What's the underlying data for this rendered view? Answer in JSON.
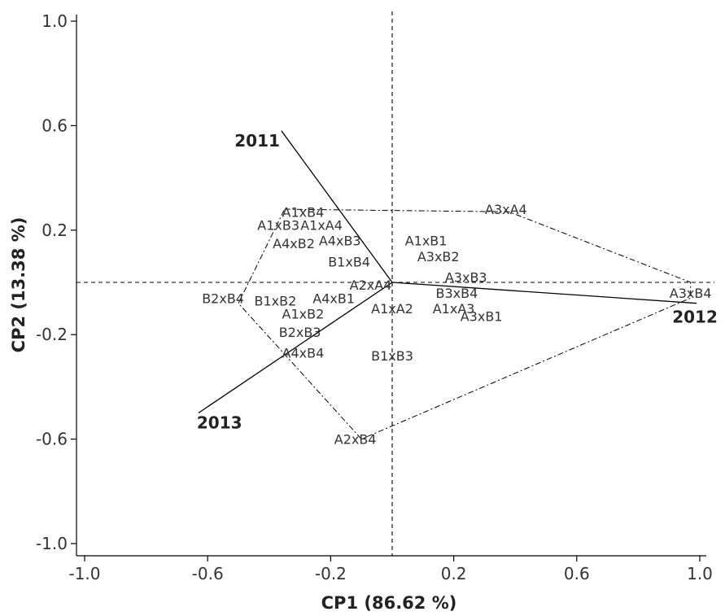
{
  "chart_data": {
    "type": "scatter",
    "subtype": "gge-biplot",
    "title": "",
    "xlabel": "CP1 (86.62 %)",
    "ylabel": "CP2 (13.38 %)",
    "xlim": [
      -1.0,
      1.0
    ],
    "ylim": [
      -1.0,
      1.0
    ],
    "x_ticks": [
      -1.0,
      -0.6,
      -0.2,
      0.2,
      0.6,
      1.0
    ],
    "x_tick_labels": [
      "-1.0",
      "-0.6",
      "-0.2",
      "0.2",
      "0.6",
      "1.0"
    ],
    "y_ticks": [
      1.0,
      0.6,
      0.2,
      -0.2,
      -0.6,
      -1.0
    ],
    "y_tick_labels": [
      "1.0",
      "0.6",
      "0.2",
      "-0.2",
      "-0.6",
      "-1.0"
    ],
    "grid": false,
    "origin": [
      0.0,
      0.0
    ],
    "genotypes": [
      {
        "label": "A1xB4",
        "x": -0.29,
        "y": 0.27
      },
      {
        "label": "A1xB3",
        "x": -0.37,
        "y": 0.22
      },
      {
        "label": "A1xA4",
        "x": -0.23,
        "y": 0.22
      },
      {
        "label": "A4xB2",
        "x": -0.32,
        "y": 0.15
      },
      {
        "label": "A4xB3",
        "x": -0.17,
        "y": 0.16
      },
      {
        "label": "B1xB4",
        "x": -0.14,
        "y": 0.08
      },
      {
        "label": "A1xB1",
        "x": 0.11,
        "y": 0.16
      },
      {
        "label": "A3xB2",
        "x": 0.15,
        "y": 0.1
      },
      {
        "label": "A3xA4",
        "x": 0.37,
        "y": 0.28
      },
      {
        "label": "A3xB3",
        "x": 0.24,
        "y": 0.02
      },
      {
        "label": "A2xA4",
        "x": -0.07,
        "y": -0.01
      },
      {
        "label": "B3xB4",
        "x": 0.21,
        "y": -0.04
      },
      {
        "label": "A3xB4",
        "x": 0.97,
        "y": -0.04
      },
      {
        "label": "B2xB4",
        "x": -0.55,
        "y": -0.06
      },
      {
        "label": "B1xB2",
        "x": -0.38,
        "y": -0.07
      },
      {
        "label": "A4xB1",
        "x": -0.19,
        "y": -0.06
      },
      {
        "label": "A1xA2",
        "x": 0.0,
        "y": -0.1
      },
      {
        "label": "A1xA3",
        "x": 0.2,
        "y": -0.1
      },
      {
        "label": "A3xB1",
        "x": 0.29,
        "y": -0.13
      },
      {
        "label": "A1xB2",
        "x": -0.29,
        "y": -0.12
      },
      {
        "label": "B2xB3",
        "x": -0.3,
        "y": -0.19
      },
      {
        "label": "A4xB4",
        "x": -0.29,
        "y": -0.27
      },
      {
        "label": "B1xB3",
        "x": 0.0,
        "y": -0.28
      },
      {
        "label": "A2xB4",
        "x": -0.12,
        "y": -0.6
      }
    ],
    "environments": [
      {
        "label": "2011",
        "x": -0.36,
        "y": 0.58
      },
      {
        "label": "2012",
        "x": 0.99,
        "y": -0.08
      },
      {
        "label": "2013",
        "x": -0.63,
        "y": -0.5
      }
    ],
    "polygon_vertices": [
      [
        -0.35,
        0.28
      ],
      [
        0.38,
        0.27
      ],
      [
        0.97,
        0.0
      ],
      [
        0.97,
        -0.06
      ],
      [
        -0.1,
        -0.6
      ],
      [
        -0.5,
        -0.08
      ],
      [
        -0.35,
        0.28
      ]
    ]
  }
}
